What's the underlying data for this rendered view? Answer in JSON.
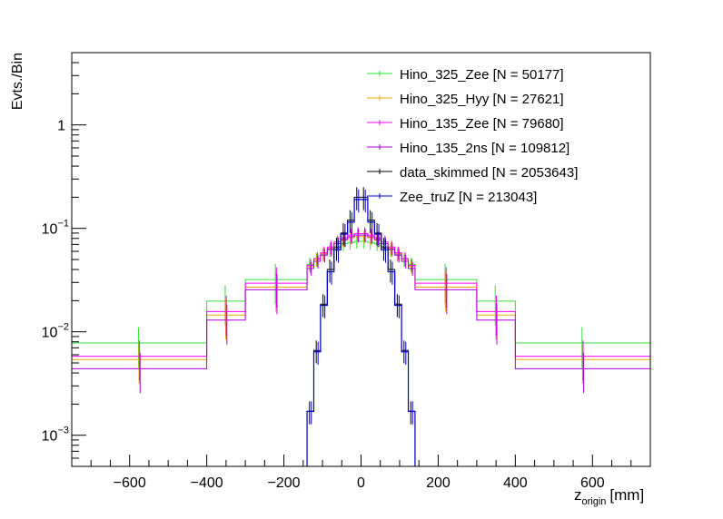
{
  "chart_data": {
    "type": "step-histogram",
    "title": "",
    "xlabel_main": "z",
    "xlabel_sub": "origin",
    "xlabel_unit": "[mm]",
    "ylabel": "Evts./Bin",
    "yscale": "log",
    "xlim": [
      -750,
      750
    ],
    "ylim": [
      0.0005,
      5
    ],
    "x_ticks": [
      -600,
      -400,
      -200,
      0,
      200,
      400,
      600
    ],
    "x_tick_labels": [
      "−600",
      "−400",
      "−200",
      "0",
      "200",
      "400",
      "600"
    ],
    "y_ticks": [
      {
        "value": 1,
        "base": "1",
        "exp": ""
      },
      {
        "value": 0.1,
        "base": "10",
        "exp": "−1"
      },
      {
        "value": 0.01,
        "base": "10",
        "exp": "−2"
      },
      {
        "value": 0.001,
        "base": "10",
        "exp": "−3"
      }
    ],
    "legend_position": "top-right",
    "wide_bin_edges": [
      -750,
      -400,
      -300,
      -140,
      140,
      300,
      400,
      750
    ],
    "signal_series": [
      {
        "name": "Hino_325_Zee",
        "label": "Hino_325_Zee [N = 50177]",
        "color": "#33dd33",
        "outer": [
          0.0078,
          0.0198,
          0.032
        ],
        "core": [
          0.045,
          0.05,
          0.056,
          0.062,
          0.067,
          0.071,
          0.073,
          0.075,
          0.075,
          0.073,
          0.071,
          0.067,
          0.062,
          0.056,
          0.05,
          0.045
        ]
      },
      {
        "name": "Hino_325_Hyy",
        "label": "Hino_325_Hyy [N = 27621]",
        "color": "#eeaa00",
        "outer": [
          0.0054,
          0.0145,
          0.027
        ],
        "core": [
          0.043,
          0.05,
          0.057,
          0.064,
          0.071,
          0.077,
          0.081,
          0.083,
          0.083,
          0.081,
          0.077,
          0.071,
          0.064,
          0.057,
          0.05,
          0.043
        ]
      },
      {
        "name": "Hino_135_Zee",
        "label": "Hino_135_Zee [N = 79680]",
        "color": "#ff00ff",
        "outer": [
          0.0058,
          0.0157,
          0.0295
        ],
        "core": [
          0.044,
          0.051,
          0.058,
          0.066,
          0.074,
          0.081,
          0.086,
          0.089,
          0.089,
          0.086,
          0.081,
          0.074,
          0.066,
          0.058,
          0.051,
          0.044
        ]
      },
      {
        "name": "Hino_135_2ns",
        "label": "Hino_135_2ns [N = 109812]",
        "color": "#aa00dd",
        "outer": [
          0.0044,
          0.013,
          0.0255
        ],
        "core": [
          0.041,
          0.048,
          0.055,
          0.063,
          0.071,
          0.078,
          0.083,
          0.086,
          0.086,
          0.083,
          0.078,
          0.071,
          0.063,
          0.055,
          0.048,
          0.041
        ]
      }
    ],
    "narrow_bin_edges": [
      -140,
      -122.5,
      -105,
      -87.5,
      -70,
      -52.5,
      -35,
      -17.5,
      0,
      17.5,
      35,
      52.5,
      70,
      87.5,
      105,
      122.5,
      140
    ],
    "background_series": [
      {
        "name": "data_skimmed",
        "label": "data_skimmed [N = 2053643]",
        "color": "#000000",
        "values": [
          0.0017,
          0.0066,
          0.0185,
          0.04,
          0.065,
          0.09,
          0.12,
          0.2,
          0.2,
          0.12,
          0.09,
          0.065,
          0.04,
          0.0185,
          0.0066,
          0.0017
        ]
      },
      {
        "name": "Zee_truZ",
        "label": "Zee_truZ [N = 213043]",
        "color": "#0000cc",
        "values": [
          0.0017,
          0.0064,
          0.018,
          0.038,
          0.062,
          0.088,
          0.115,
          0.19,
          0.19,
          0.115,
          0.088,
          0.062,
          0.038,
          0.018,
          0.0064,
          0.0017
        ]
      }
    ],
    "legend_order": [
      "Hino_325_Zee",
      "Hino_325_Hyy",
      "Hino_135_Zee",
      "Hino_135_2ns",
      "data_skimmed",
      "Zee_truZ"
    ]
  }
}
